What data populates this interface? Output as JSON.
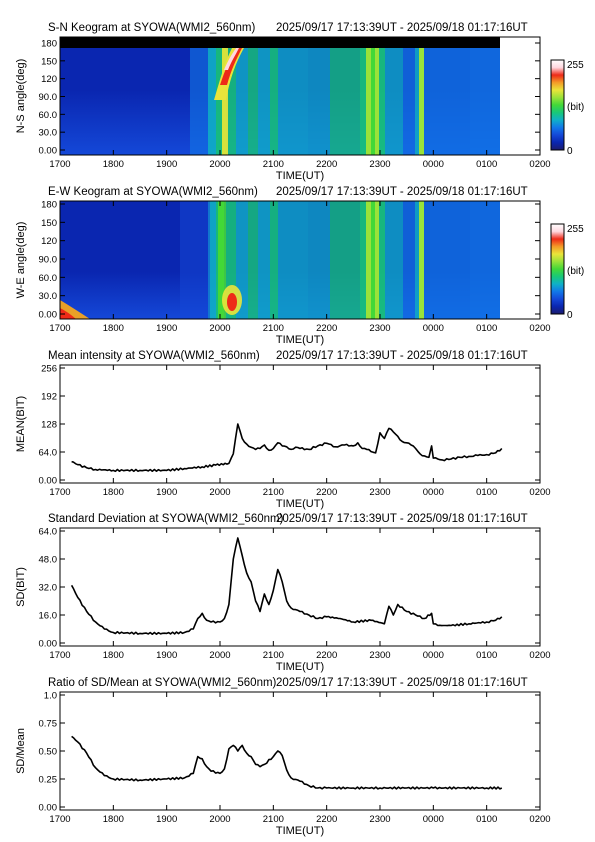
{
  "figure": {
    "station": "SYOWA",
    "instrument": "WMI2_560nm",
    "time_range": "2025/09/17 17:13:39UT - 2025/09/18 01:17:16UT"
  },
  "colors": {
    "line": "#000000",
    "colormap": [
      "#1c1c6e",
      "#0a26b0",
      "#1448d8",
      "#1278e8",
      "#10b0c8",
      "#18c878",
      "#42d838",
      "#9ae23a",
      "#eae43a",
      "#f49a28",
      "#ee2a18",
      "#ffd8e0",
      "#ffffff"
    ]
  },
  "chart_data": [
    {
      "type": "heatmap",
      "title": "S-N Keogram at SYOWA(WMI2_560nm)",
      "time_range": "2025/09/17 17:13:39UT - 2025/09/18 01:17:16UT",
      "xlabel": "TIME(UT)",
      "ylabel": "N-S angle(deg)",
      "xticks": [
        "1700",
        "1800",
        "1900",
        "2000",
        "2100",
        "2200",
        "2300",
        "0000",
        "0100",
        "0200"
      ],
      "yticks": [
        "0.00",
        "30.0",
        "60.0",
        "90.0",
        "120",
        "150",
        "180"
      ],
      "xlim": [
        "17:00",
        "02:00"
      ],
      "ylim": [
        0,
        180
      ],
      "data_range": [
        "17:13",
        "01:17"
      ],
      "colorbar": {
        "min": "0",
        "max": "255",
        "label": "(bit)"
      }
    },
    {
      "type": "heatmap",
      "title": "E-W Keogram at SYOWA(WMI2_560nm)",
      "time_range": "2025/09/17 17:13:39UT - 2025/09/18 01:17:16UT",
      "xlabel": "TIME(UT)",
      "ylabel": "W-E angle(deg)",
      "xticks": [
        "1700",
        "1800",
        "1900",
        "2000",
        "2100",
        "2200",
        "2300",
        "0000",
        "0100",
        "0200"
      ],
      "yticks": [
        "0.00",
        "30.0",
        "60.0",
        "90.0",
        "120",
        "150",
        "180"
      ],
      "xlim": [
        "17:00",
        "02:00"
      ],
      "ylim": [
        0,
        180
      ],
      "data_range": [
        "17:13",
        "01:17"
      ],
      "colorbar": {
        "min": "0",
        "max": "255",
        "label": "(bit)"
      }
    },
    {
      "type": "line",
      "title": "Mean intensity at SYOWA(WMI2_560nm)",
      "time_range": "2025/09/17 17:13:39UT - 2025/09/18 01:17:16UT",
      "xlabel": "TIME(UT)",
      "ylabel": "MEAN(BIT)",
      "xticks": [
        "1700",
        "1800",
        "1900",
        "2000",
        "2100",
        "2200",
        "2300",
        "0000",
        "0100",
        "0200"
      ],
      "yticks": [
        "0.00",
        "64.0",
        "128",
        "192",
        "256"
      ],
      "xlim": [
        "17:00",
        "02:00"
      ],
      "ylim": [
        0,
        256
      ],
      "series": [
        {
          "x": [
            "17:13",
            "17:20",
            "17:30",
            "17:40",
            "18:00",
            "18:30",
            "19:00",
            "19:20",
            "19:40",
            "19:55",
            "20:10",
            "20:15",
            "20:20",
            "20:25",
            "20:30",
            "20:35",
            "20:40",
            "20:45",
            "20:50",
            "20:55",
            "21:00",
            "21:05",
            "21:10",
            "21:15",
            "21:20",
            "21:25",
            "21:30",
            "21:40",
            "21:50",
            "22:00",
            "22:10",
            "22:20",
            "22:30",
            "22:35",
            "22:40",
            "22:45",
            "22:50",
            "22:55",
            "23:00",
            "23:05",
            "23:10",
            "23:15",
            "23:20",
            "23:25",
            "23:30",
            "23:35",
            "23:40",
            "23:45",
            "23:50",
            "23:55",
            "23:58",
            "00:00",
            "00:05",
            "00:10",
            "00:20",
            "00:30",
            "00:40",
            "00:50",
            "01:00",
            "01:10",
            "01:17"
          ],
          "values": [
            42,
            35,
            28,
            24,
            22,
            22,
            22,
            26,
            30,
            34,
            38,
            60,
            128,
            95,
            82,
            75,
            70,
            72,
            80,
            68,
            72,
            85,
            78,
            76,
            70,
            75,
            72,
            70,
            78,
            84,
            76,
            80,
            78,
            85,
            72,
            70,
            65,
            62,
            108,
            95,
            118,
            110,
            100,
            88,
            85,
            80,
            72,
            60,
            55,
            52,
            78,
            50,
            48,
            46,
            48,
            52,
            54,
            56,
            58,
            62,
            72
          ]
        }
      ]
    },
    {
      "type": "line",
      "title": "Standard Deviation at SYOWA(WMI2_560nm)",
      "time_range": "2025/09/17 17:13:39UT - 2025/09/18 01:17:16UT",
      "xlabel": "TIME(UT)",
      "ylabel": "SD(BIT)",
      "xticks": [
        "1700",
        "1800",
        "1900",
        "2000",
        "2100",
        "2200",
        "2300",
        "0000",
        "0100",
        "0200"
      ],
      "yticks": [
        "0.00",
        "16.0",
        "32.0",
        "48.0",
        "64.0"
      ],
      "xlim": [
        "17:00",
        "02:00"
      ],
      "ylim": [
        0,
        64
      ],
      "series": [
        {
          "x": [
            "17:13",
            "17:20",
            "17:30",
            "17:40",
            "17:50",
            "18:00",
            "18:30",
            "19:00",
            "19:20",
            "19:30",
            "19:35",
            "19:40",
            "19:45",
            "19:50",
            "20:00",
            "20:05",
            "20:10",
            "20:15",
            "20:20",
            "20:25",
            "20:30",
            "20:35",
            "20:40",
            "20:45",
            "20:50",
            "20:55",
            "21:00",
            "21:05",
            "21:10",
            "21:15",
            "21:20",
            "21:30",
            "21:40",
            "21:50",
            "22:00",
            "22:15",
            "22:30",
            "22:50",
            "23:05",
            "23:10",
            "23:15",
            "23:20",
            "23:30",
            "23:40",
            "23:50",
            "23:58",
            "00:00",
            "00:05",
            "00:20",
            "00:40",
            "01:00",
            "01:10",
            "01:17"
          ],
          "values": [
            33,
            26,
            18,
            12,
            8,
            6,
            5.5,
            5.5,
            6,
            8,
            14,
            17,
            13,
            12,
            12,
            14,
            22,
            48,
            60,
            50,
            40,
            35,
            24,
            18,
            28,
            22,
            30,
            42,
            35,
            24,
            20,
            18,
            16,
            14,
            15,
            14,
            12,
            13,
            11,
            21,
            16,
            22,
            18,
            16,
            14,
            17,
            11,
            10,
            10,
            11,
            12,
            13,
            15
          ]
        }
      ]
    },
    {
      "type": "line",
      "title": "Ratio of SD/Mean at SYOWA(WMI2_560nm)",
      "time_range": "2025/09/17 17:13:39UT - 2025/09/18 01:17:16UT",
      "xlabel": "TIME(UT)",
      "ylabel": "SD/Mean",
      "xticks": [
        "1700",
        "1800",
        "1900",
        "2000",
        "2100",
        "2200",
        "2300",
        "0000",
        "0100",
        "0200"
      ],
      "yticks": [
        "0.00",
        "0.25",
        "0.50",
        "0.75",
        "1.0"
      ],
      "xlim": [
        "17:00",
        "02:00"
      ],
      "ylim": [
        0,
        1
      ],
      "series": [
        {
          "x": [
            "17:13",
            "17:20",
            "17:30",
            "17:40",
            "17:50",
            "18:00",
            "18:30",
            "19:00",
            "19:20",
            "19:30",
            "19:35",
            "19:40",
            "19:45",
            "19:50",
            "20:00",
            "20:05",
            "20:10",
            "20:15",
            "20:20",
            "20:25",
            "20:30",
            "20:35",
            "20:40",
            "20:45",
            "20:50",
            "21:00",
            "21:05",
            "21:10",
            "21:15",
            "21:20",
            "21:30",
            "21:40",
            "21:50",
            "22:00",
            "22:30",
            "23:00",
            "23:30",
            "00:00",
            "00:30",
            "01:00",
            "01:17"
          ],
          "values": [
            0.63,
            0.58,
            0.48,
            0.35,
            0.28,
            0.25,
            0.24,
            0.25,
            0.26,
            0.3,
            0.45,
            0.43,
            0.36,
            0.32,
            0.3,
            0.34,
            0.52,
            0.55,
            0.5,
            0.55,
            0.48,
            0.45,
            0.38,
            0.36,
            0.38,
            0.45,
            0.5,
            0.46,
            0.33,
            0.26,
            0.23,
            0.19,
            0.17,
            0.17,
            0.17,
            0.17,
            0.17,
            0.17,
            0.17,
            0.17,
            0.17
          ]
        }
      ]
    }
  ]
}
